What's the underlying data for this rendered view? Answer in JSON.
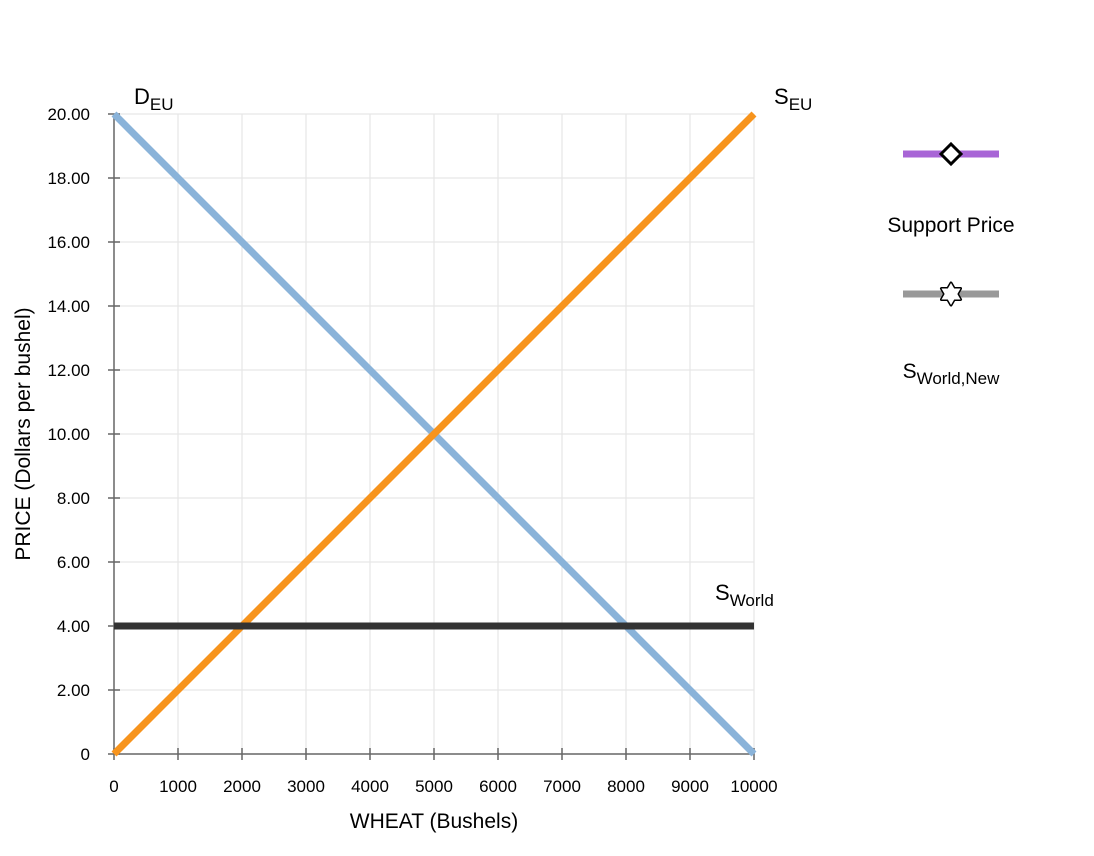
{
  "chart_data": {
    "type": "line",
    "xlabel": "WHEAT (Bushels)",
    "ylabel": "PRICE (Dollars per bushel)",
    "xlim": [
      0,
      10000
    ],
    "ylim": [
      0,
      20
    ],
    "x_ticks": [
      0,
      1000,
      2000,
      3000,
      4000,
      5000,
      6000,
      7000,
      8000,
      9000,
      10000
    ],
    "x_tick_labels": [
      "0",
      "1000",
      "2000",
      "3000",
      "4000",
      "5000",
      "6000",
      "7000",
      "8000",
      "9000",
      "10000"
    ],
    "y_ticks": [
      0,
      2,
      4,
      6,
      8,
      10,
      12,
      14,
      16,
      18,
      20
    ],
    "y_tick_labels": [
      "0",
      "2.00",
      "4.00",
      "6.00",
      "8.00",
      "10.00",
      "12.00",
      "14.00",
      "16.00",
      "18.00",
      "20.00"
    ],
    "grid": true,
    "series": [
      {
        "key": "d_eu",
        "label_main": "D",
        "label_sub": "EU",
        "color": "#8ab3d9",
        "points": [
          [
            0,
            20
          ],
          [
            10000,
            0
          ]
        ]
      },
      {
        "key": "s_eu",
        "label_main": "S",
        "label_sub": "EU",
        "color": "#f7941d",
        "points": [
          [
            0,
            0
          ],
          [
            10000,
            20
          ]
        ]
      },
      {
        "key": "s_world",
        "label_main": "S",
        "label_sub": "World",
        "color": "#333333",
        "points": [
          [
            0,
            4
          ],
          [
            10000,
            4
          ]
        ]
      }
    ],
    "legend": {
      "position": "right",
      "items": [
        {
          "key": "support_price",
          "label_main": "Support Price",
          "label_sub": "",
          "color": "#a865d6",
          "marker": "diamond"
        },
        {
          "key": "s_world_new",
          "label_main": "S",
          "label_sub": "World,New",
          "color": "#999999",
          "marker": "star"
        }
      ]
    }
  }
}
